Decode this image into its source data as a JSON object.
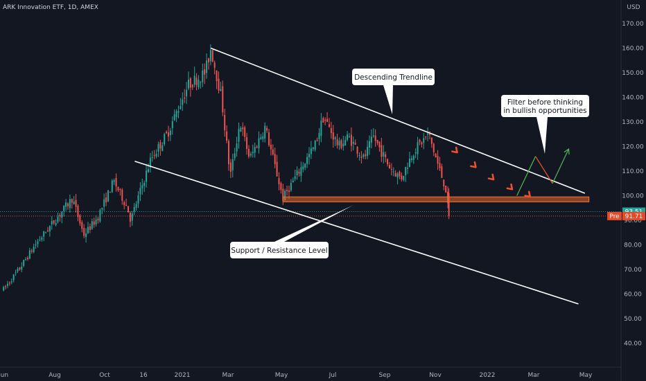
{
  "chart_data": {
    "type": "candlestick",
    "title": "ARK Innovation ETF, 1D, AMEX",
    "currency": "USD",
    "y_ticks": [
      40,
      50,
      60,
      70,
      80,
      90,
      100,
      110,
      120,
      130,
      140,
      150,
      160,
      170
    ],
    "ylim": [
      35,
      178
    ],
    "x_ticks": [
      "Jun",
      "Aug",
      "Oct",
      "16",
      "2021",
      "Mar",
      "May",
      "Jul",
      "Sep",
      "Nov",
      "2022",
      "Mar",
      "May"
    ],
    "grid": false,
    "colors": {
      "up": "#26a69a",
      "down": "#ef5350",
      "background": "#131722",
      "line": "#ffffff",
      "band": "#e46a2e",
      "arrow_red": "#e8532f",
      "arrow_green": "#4caf50"
    },
    "price_path": [
      {
        "date": "2020-06-01",
        "close": 62
      },
      {
        "date": "2020-06-20",
        "close": 70
      },
      {
        "date": "2020-07-10",
        "close": 80
      },
      {
        "date": "2020-08-01",
        "close": 89
      },
      {
        "date": "2020-08-25",
        "close": 99
      },
      {
        "date": "2020-09-08",
        "close": 84
      },
      {
        "date": "2020-09-25",
        "close": 91
      },
      {
        "date": "2020-10-15",
        "close": 106
      },
      {
        "date": "2020-11-01",
        "close": 95
      },
      {
        "date": "2020-11-05",
        "close": 90
      },
      {
        "date": "2020-11-30",
        "close": 115
      },
      {
        "date": "2020-12-20",
        "close": 125
      },
      {
        "date": "2021-01-15",
        "close": 145
      },
      {
        "date": "2021-02-05",
        "close": 150
      },
      {
        "date": "2021-02-12",
        "close": 160
      },
      {
        "date": "2021-02-25",
        "close": 140
      },
      {
        "date": "2021-03-08",
        "close": 108
      },
      {
        "date": "2021-03-20",
        "close": 130
      },
      {
        "date": "2021-04-01",
        "close": 115
      },
      {
        "date": "2021-04-20",
        "close": 128
      },
      {
        "date": "2021-05-12",
        "close": 99
      },
      {
        "date": "2021-06-01",
        "close": 110
      },
      {
        "date": "2021-06-20",
        "close": 120
      },
      {
        "date": "2021-07-01",
        "close": 132
      },
      {
        "date": "2021-07-20",
        "close": 120
      },
      {
        "date": "2021-08-01",
        "close": 124
      },
      {
        "date": "2021-08-20",
        "close": 115
      },
      {
        "date": "2021-09-01",
        "close": 124
      },
      {
        "date": "2021-09-20",
        "close": 112
      },
      {
        "date": "2021-10-05",
        "close": 107
      },
      {
        "date": "2021-10-20",
        "close": 118
      },
      {
        "date": "2021-11-08",
        "close": 125
      },
      {
        "date": "2021-11-20",
        "close": 112
      },
      {
        "date": "2021-11-29",
        "close": 103
      },
      {
        "date": "2021-12-03",
        "close": 91.71
      }
    ],
    "descending_trendline": [
      {
        "date": "2021-02-12",
        "value": 160
      },
      {
        "date": "2022-05-20",
        "value": 101
      }
    ],
    "lower_channel_line": [
      {
        "date": "2020-11-10",
        "value": 114
      },
      {
        "date": "2022-05-12",
        "value": 56
      }
    ],
    "support_zone": {
      "from_date": "2021-05-12",
      "to_date": "2022-05-25",
      "low": 97.5,
      "high": 99.5
    },
    "projected_path_red": [
      {
        "date": "2021-12-12",
        "value": 118
      },
      {
        "date": "2022-01-04",
        "value": 112
      },
      {
        "date": "2022-01-26",
        "value": 107
      },
      {
        "date": "2022-02-18",
        "value": 103
      },
      {
        "date": "2022-03-12",
        "value": 100
      }
    ],
    "projected_path_green": [
      {
        "date": "2022-02-25",
        "value": 100
      },
      {
        "date": "2022-03-20",
        "value": 116
      },
      {
        "date": "2022-04-10",
        "value": 105
      },
      {
        "date": "2022-04-30",
        "value": 119
      }
    ],
    "price_labels": [
      {
        "label": "",
        "value": "93.51",
        "color": "#26a69a"
      },
      {
        "label": "Pre",
        "value": "91.71",
        "color": "#e54b2b"
      }
    ],
    "annotations": [
      {
        "text": [
          "Descending Trendline"
        ]
      },
      {
        "text": [
          "Filter before thinking",
          "in bullish opportunities"
        ]
      },
      {
        "text": [
          "Support / Resistance Level"
        ]
      }
    ]
  }
}
